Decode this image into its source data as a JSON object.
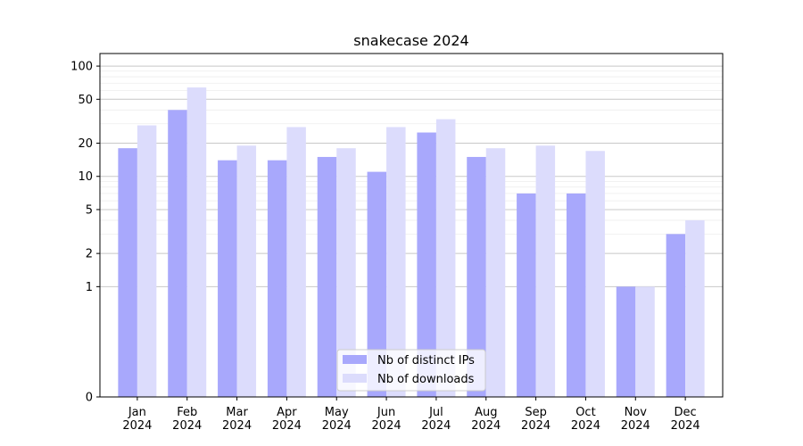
{
  "chart_data": {
    "type": "bar",
    "title": "snakecase 2024",
    "xlabel": "",
    "ylabel": "",
    "yscale": "symlog",
    "categories": [
      "Jan 2024",
      "Feb 2024",
      "Mar 2024",
      "Apr 2024",
      "May 2024",
      "Jun 2024",
      "Jul 2024",
      "Aug 2024",
      "Sep 2024",
      "Oct 2024",
      "Nov 2024",
      "Dec 2024"
    ],
    "category_lines": [
      [
        "Jan",
        "2024"
      ],
      [
        "Feb",
        "2024"
      ],
      [
        "Mar",
        "2024"
      ],
      [
        "Apr",
        "2024"
      ],
      [
        "May",
        "2024"
      ],
      [
        "Jun",
        "2024"
      ],
      [
        "Jul",
        "2024"
      ],
      [
        "Aug",
        "2024"
      ],
      [
        "Sep",
        "2024"
      ],
      [
        "Oct",
        "2024"
      ],
      [
        "Nov",
        "2024"
      ],
      [
        "Dec",
        "2024"
      ]
    ],
    "y_ticks": [
      0,
      1,
      2,
      5,
      10,
      20,
      50,
      100
    ],
    "y_tick_labels": [
      "0",
      "1",
      "2",
      "5",
      "10",
      "20",
      "50",
      "100"
    ],
    "ylim": [
      0,
      130
    ],
    "grid": true,
    "legend_position": "bottom-center",
    "series": [
      {
        "name": "Nb of distinct IPs",
        "color": "#a8a8fc",
        "values": [
          18,
          40,
          14,
          14,
          15,
          11,
          25,
          15,
          7,
          7,
          1,
          3
        ]
      },
      {
        "name": "Nb of downloads",
        "color": "#dcdcfc",
        "values": [
          29,
          64,
          19,
          28,
          18,
          28,
          33,
          18,
          19,
          17,
          1,
          4
        ]
      }
    ]
  }
}
